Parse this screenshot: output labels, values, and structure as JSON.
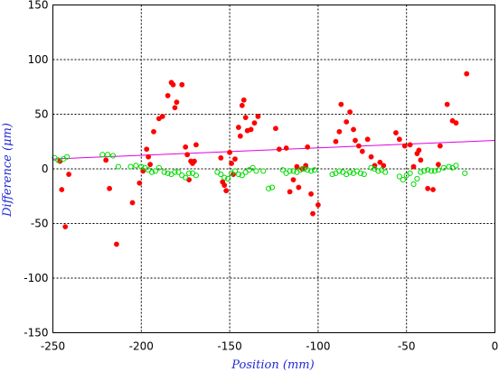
{
  "chart_data": {
    "type": "scatter",
    "title": "",
    "xlabel": "Position (mm)",
    "ylabel": "Difference (μm)",
    "xlim": [
      -250,
      0
    ],
    "ylim": [
      -150,
      150
    ],
    "grid": true,
    "x_ticks": [
      -250,
      -200,
      -150,
      -100,
      -50,
      0
    ],
    "y_ticks": [
      -150,
      -100,
      -50,
      0,
      50,
      100,
      150
    ],
    "colors": {
      "series_a": "#ff0000",
      "series_b": "#00dd00",
      "fit_line": "#e000e0",
      "axis_title": "#1f2bd6"
    },
    "series": [
      {
        "marker": "filled-circle",
        "color": "#ff0000",
        "points": [
          [
            -246,
            7
          ],
          [
            -245,
            -19
          ],
          [
            -243,
            -53
          ],
          [
            -241,
            -5
          ],
          [
            -220,
            8
          ],
          [
            -218,
            -18
          ],
          [
            -214,
            -69
          ],
          [
            -205,
            -31
          ],
          [
            -201,
            -13
          ],
          [
            -199,
            -2
          ],
          [
            -197,
            18
          ],
          [
            -196,
            11
          ],
          [
            -195,
            4
          ],
          [
            -193,
            34
          ],
          [
            -190,
            46
          ],
          [
            -188,
            48
          ],
          [
            -185,
            67
          ],
          [
            -183,
            79
          ],
          [
            -182,
            77
          ],
          [
            -181,
            56
          ],
          [
            -180,
            61
          ],
          [
            -177,
            77
          ],
          [
            -175,
            20
          ],
          [
            -174,
            13
          ],
          [
            -173,
            -10
          ],
          [
            -172,
            7
          ],
          [
            -171,
            5
          ],
          [
            -170,
            7
          ],
          [
            -169,
            22
          ],
          [
            -155,
            10
          ],
          [
            -154,
            -12
          ],
          [
            -153,
            -15
          ],
          [
            -152,
            -20
          ],
          [
            -150,
            15
          ],
          [
            -149,
            5
          ],
          [
            -148,
            -5
          ],
          [
            -147,
            9
          ],
          [
            -145,
            38
          ],
          [
            -144,
            30
          ],
          [
            -143,
            58
          ],
          [
            -142,
            63
          ],
          [
            -141,
            47
          ],
          [
            -140,
            35
          ],
          [
            -138,
            36
          ],
          [
            -136,
            42
          ],
          [
            -134,
            48
          ],
          [
            -124,
            37
          ],
          [
            -122,
            18
          ],
          [
            -118,
            19
          ],
          [
            -116,
            -21
          ],
          [
            -114,
            -10
          ],
          [
            -112,
            2
          ],
          [
            -111,
            -17
          ],
          [
            -109,
            0
          ],
          [
            -107,
            3
          ],
          [
            -106,
            20
          ],
          [
            -104,
            -23
          ],
          [
            -103,
            -41
          ],
          [
            -100,
            -33
          ],
          [
            -90,
            25
          ],
          [
            -88,
            34
          ],
          [
            -87,
            59
          ],
          [
            -84,
            43
          ],
          [
            -82,
            52
          ],
          [
            -80,
            36
          ],
          [
            -79,
            26
          ],
          [
            -77,
            21
          ],
          [
            -75,
            16
          ],
          [
            -72,
            27
          ],
          [
            -70,
            11
          ],
          [
            -68,
            3
          ],
          [
            -65,
            6
          ],
          [
            -63,
            3
          ],
          [
            -56,
            33
          ],
          [
            -54,
            27
          ],
          [
            -51,
            21
          ],
          [
            -48,
            22
          ],
          [
            -46,
            2
          ],
          [
            -44,
            14
          ],
          [
            -43,
            17
          ],
          [
            -42,
            8
          ],
          [
            -38,
            -18
          ],
          [
            -35,
            -19
          ],
          [
            -32,
            4
          ],
          [
            -31,
            21
          ],
          [
            -27,
            59
          ],
          [
            -24,
            44
          ],
          [
            -22,
            42
          ],
          [
            -16,
            87
          ]
        ]
      },
      {
        "marker": "open-circle",
        "color": "#00dd00",
        "points": [
          [
            -249,
            10
          ],
          [
            -247,
            8
          ],
          [
            -244,
            9
          ],
          [
            -242,
            11
          ],
          [
            -222,
            13
          ],
          [
            -219,
            13
          ],
          [
            -216,
            12
          ],
          [
            -213,
            2
          ],
          [
            -206,
            2
          ],
          [
            -203,
            3
          ],
          [
            -200,
            2
          ],
          [
            -198,
            1
          ],
          [
            -196,
            -1
          ],
          [
            -194,
            -3
          ],
          [
            -192,
            -2
          ],
          [
            -190,
            1
          ],
          [
            -187,
            -3
          ],
          [
            -185,
            -4
          ],
          [
            -183,
            -5
          ],
          [
            -181,
            -3
          ],
          [
            -179,
            -3
          ],
          [
            -177,
            -6
          ],
          [
            -175,
            -8
          ],
          [
            -173,
            -4
          ],
          [
            -171,
            -4
          ],
          [
            -169,
            -6
          ],
          [
            -157,
            -3
          ],
          [
            -155,
            -5
          ],
          [
            -153,
            -8
          ],
          [
            -151,
            -9
          ],
          [
            -149,
            -4
          ],
          [
            -147,
            -2
          ],
          [
            -145,
            -5
          ],
          [
            -143,
            -6
          ],
          [
            -141,
            -3
          ],
          [
            -139,
            -1
          ],
          [
            -137,
            1
          ],
          [
            -135,
            -2
          ],
          [
            -131,
            -2
          ],
          [
            -128,
            -18
          ],
          [
            -126,
            -17
          ],
          [
            -120,
            -1
          ],
          [
            -118,
            -4
          ],
          [
            -116,
            -2
          ],
          [
            -114,
            -2
          ],
          [
            -112,
            -3
          ],
          [
            -110,
            -1
          ],
          [
            -108,
            0
          ],
          [
            -106,
            -1
          ],
          [
            -104,
            -2
          ],
          [
            -102,
            -1
          ],
          [
            -92,
            -5
          ],
          [
            -90,
            -4
          ],
          [
            -88,
            -2
          ],
          [
            -86,
            -3
          ],
          [
            -84,
            -5
          ],
          [
            -82,
            -3
          ],
          [
            -80,
            -4
          ],
          [
            -78,
            -2
          ],
          [
            -76,
            -4
          ],
          [
            -74,
            -5
          ],
          [
            -70,
            1
          ],
          [
            -68,
            0
          ],
          [
            -66,
            -2
          ],
          [
            -64,
            -1
          ],
          [
            -62,
            -3
          ],
          [
            -54,
            -7
          ],
          [
            -52,
            -10
          ],
          [
            -50,
            -6
          ],
          [
            -48,
            -4
          ],
          [
            -46,
            -14
          ],
          [
            -44,
            -9
          ],
          [
            -42,
            -3
          ],
          [
            -40,
            -2
          ],
          [
            -38,
            -1
          ],
          [
            -36,
            -2
          ],
          [
            -34,
            -2
          ],
          [
            -32,
            -1
          ],
          [
            -29,
            1
          ],
          [
            -26,
            2
          ],
          [
            -24,
            1
          ],
          [
            -22,
            3
          ],
          [
            -17,
            -4
          ]
        ]
      }
    ],
    "fit_line": {
      "color": "#e000e0",
      "points": [
        [
          -250,
          9
        ],
        [
          0,
          26
        ]
      ]
    }
  }
}
